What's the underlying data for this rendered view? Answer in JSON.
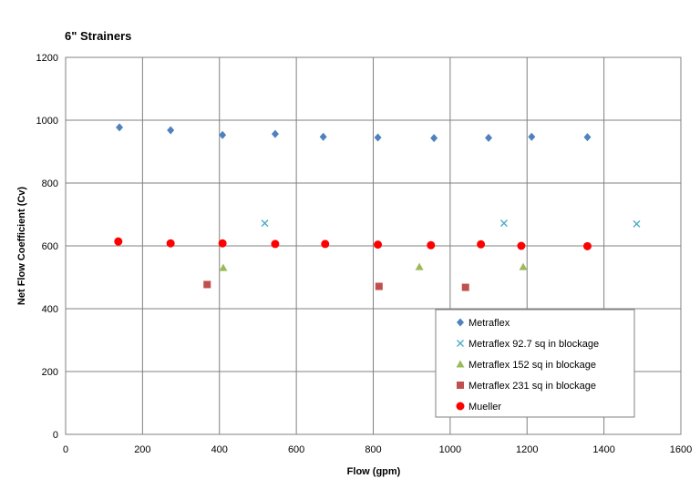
{
  "chart_data": {
    "type": "scatter",
    "title": "6\" Strainers",
    "xlabel": "Flow (gpm)",
    "ylabel": "Net Flow Coefficient (Cv)",
    "xlim": [
      0,
      1600
    ],
    "ylim": [
      0,
      1200
    ],
    "xticks": [
      0,
      200,
      400,
      600,
      800,
      1000,
      1200,
      1400,
      1600
    ],
    "yticks": [
      0,
      200,
      400,
      600,
      800,
      1000,
      1200
    ],
    "grid": true,
    "legend_position": "bottom-right",
    "series": [
      {
        "name": "Metraflex",
        "marker": "diamond",
        "color": "#4f81bd",
        "points": [
          [
            140,
            977
          ],
          [
            273,
            968
          ],
          [
            408,
            953
          ],
          [
            545,
            956
          ],
          [
            670,
            947
          ],
          [
            812,
            945
          ],
          [
            958,
            943
          ],
          [
            1100,
            944
          ],
          [
            1212,
            947
          ],
          [
            1357,
            946
          ]
        ]
      },
      {
        "name": "Metraflex 92.7 sq in blockage",
        "marker": "x",
        "color": "#4bacc6",
        "points": [
          [
            518,
            672
          ],
          [
            1140,
            672
          ],
          [
            1485,
            670
          ]
        ]
      },
      {
        "name": "Metraflex 152 sq in blockage",
        "marker": "triangle",
        "color": "#9bbb59",
        "points": [
          [
            410,
            530
          ],
          [
            920,
            533
          ],
          [
            1190,
            533
          ]
        ]
      },
      {
        "name": "Metraflex 231 sq in blockage",
        "marker": "square",
        "color": "#c0504d",
        "points": [
          [
            368,
            477
          ],
          [
            815,
            471
          ],
          [
            1040,
            468
          ]
        ]
      },
      {
        "name": "Mueller",
        "marker": "circle",
        "color": "#ff0000",
        "points": [
          [
            137,
            614
          ],
          [
            273,
            608
          ],
          [
            408,
            608
          ],
          [
            545,
            606
          ],
          [
            675,
            606
          ],
          [
            812,
            604
          ],
          [
            950,
            602
          ],
          [
            1080,
            605
          ],
          [
            1185,
            600
          ],
          [
            1357,
            599
          ]
        ]
      }
    ]
  }
}
